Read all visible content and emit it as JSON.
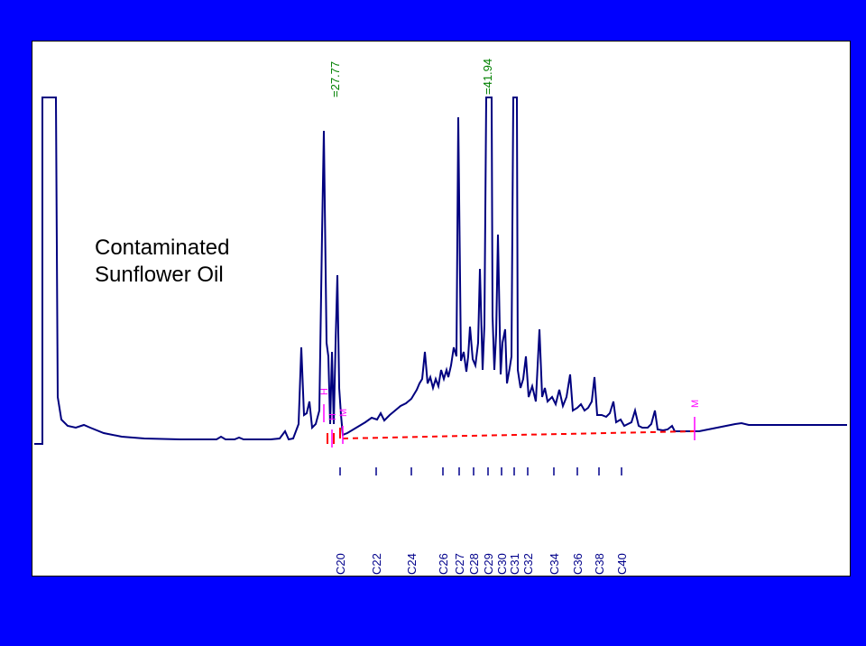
{
  "title_lines": [
    "Contaminated",
    "Sunflower Oil"
  ],
  "colors": {
    "background": "#0000ff",
    "plot_background": "#ffffff",
    "trace": "#00007f",
    "baseline": "#ff0000",
    "peak_label": "#008000",
    "marker": "#ff00ff",
    "carbon_label": "#00008b"
  },
  "chart_data": {
    "type": "line",
    "title": "Contaminated Sunflower Oil",
    "xlabel": "",
    "ylabel": "",
    "grid": false,
    "legend": "none",
    "peak_labels": [
      "=27.77",
      "=41.94"
    ],
    "carbon_markers": [
      "C20",
      "C22",
      "C24",
      "C26",
      "C27",
      "C28",
      "C29",
      "C30",
      "C31",
      "C32",
      "C34",
      "C36",
      "C38",
      "C40"
    ],
    "integration_markers": [
      "H",
      "H",
      "M",
      "M"
    ]
  }
}
